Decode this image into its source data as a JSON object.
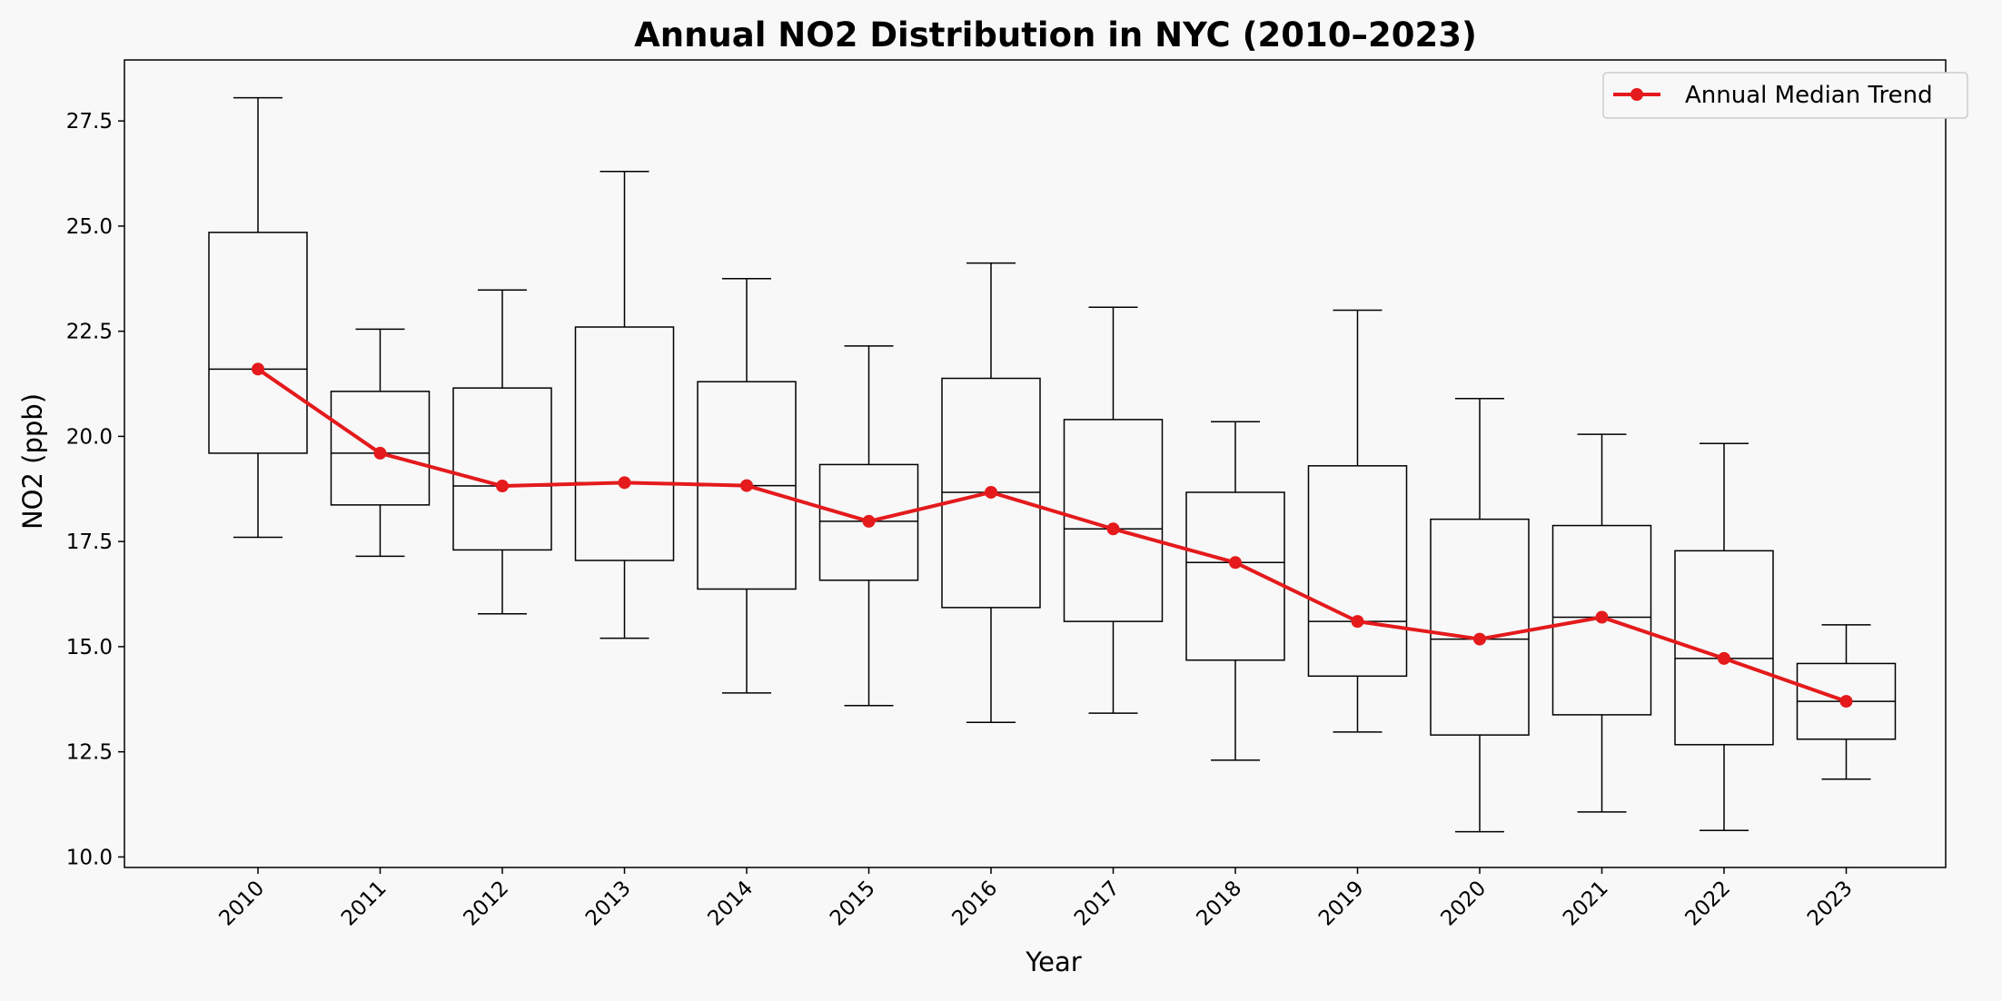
{
  "chart_data": {
    "type": "box",
    "title": "Annual NO2 Distribution in NYC (2010–2023)",
    "xlabel": "Year",
    "ylabel": "NO2 (ppb)",
    "ylim": [
      9.75,
      28.95
    ],
    "yticks": [
      "10.0",
      "12.5",
      "15.0",
      "17.5",
      "20.0",
      "22.5",
      "25.0",
      "27.5"
    ],
    "ytick_values": [
      10.0,
      12.5,
      15.0,
      17.5,
      20.0,
      22.5,
      25.0,
      27.5
    ],
    "categories": [
      "2010",
      "2011",
      "2012",
      "2013",
      "2014",
      "2015",
      "2016",
      "2017",
      "2018",
      "2019",
      "2020",
      "2021",
      "2022",
      "2023"
    ],
    "boxes": [
      {
        "whislo": 17.6,
        "q1": 19.6,
        "med": 21.6,
        "q3": 24.85,
        "whishi": 28.05
      },
      {
        "whislo": 17.15,
        "q1": 18.37,
        "med": 19.6,
        "q3": 21.07,
        "whishi": 22.55
      },
      {
        "whislo": 15.78,
        "q1": 17.3,
        "med": 18.82,
        "q3": 21.15,
        "whishi": 23.48
      },
      {
        "whislo": 15.2,
        "q1": 17.05,
        "med": 18.9,
        "q3": 22.6,
        "whishi": 26.3
      },
      {
        "whislo": 13.9,
        "q1": 16.37,
        "med": 18.83,
        "q3": 21.3,
        "whishi": 23.75
      },
      {
        "whislo": 13.6,
        "q1": 16.58,
        "med": 17.98,
        "q3": 19.33,
        "whishi": 22.15
      },
      {
        "whislo": 13.2,
        "q1": 15.93,
        "med": 18.67,
        "q3": 21.38,
        "whishi": 24.12
      },
      {
        "whislo": 13.42,
        "q1": 15.6,
        "med": 17.8,
        "q3": 20.4,
        "whishi": 23.07
      },
      {
        "whislo": 12.3,
        "q1": 14.68,
        "med": 17.0,
        "q3": 18.67,
        "whishi": 20.35
      },
      {
        "whislo": 12.97,
        "q1": 14.3,
        "med": 15.6,
        "q3": 19.3,
        "whishi": 23.0
      },
      {
        "whislo": 10.6,
        "q1": 12.9,
        "med": 15.18,
        "q3": 18.03,
        "whishi": 20.9
      },
      {
        "whislo": 11.07,
        "q1": 13.38,
        "med": 15.7,
        "q3": 17.88,
        "whishi": 20.05
      },
      {
        "whislo": 10.63,
        "q1": 12.67,
        "med": 14.72,
        "q3": 17.28,
        "whishi": 19.83
      },
      {
        "whislo": 11.85,
        "q1": 12.8,
        "med": 13.7,
        "q3": 14.6,
        "whishi": 15.52
      }
    ],
    "series": [
      {
        "name": "Annual Median Trend",
        "color": "#e41a1c",
        "values": [
          21.6,
          19.6,
          18.82,
          18.9,
          18.83,
          17.98,
          18.67,
          17.8,
          17.0,
          15.6,
          15.18,
          15.7,
          14.72,
          13.7
        ]
      }
    ],
    "legend_position": "top-right",
    "grid": false
  }
}
